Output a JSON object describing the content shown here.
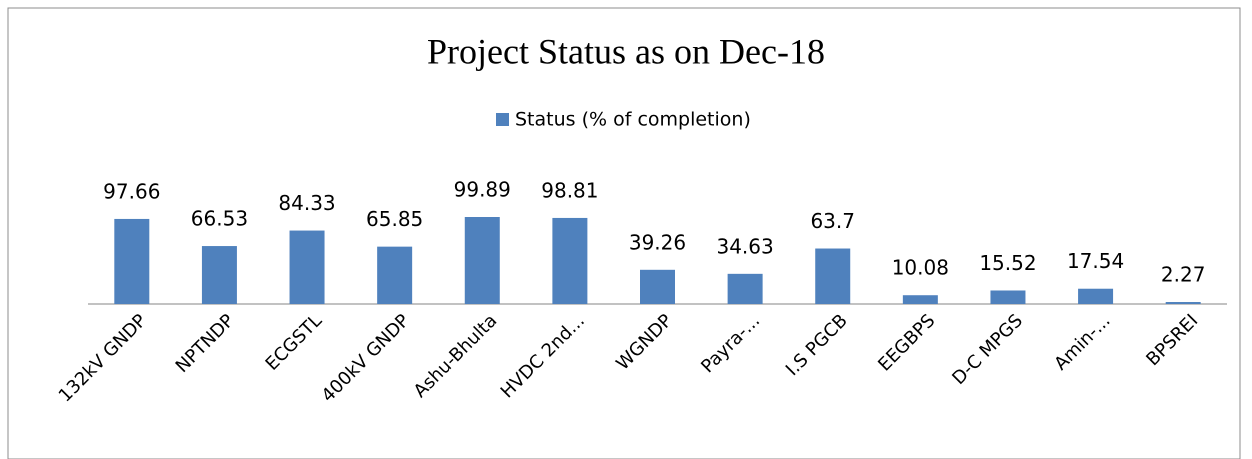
{
  "chart_data": {
    "type": "bar",
    "title": "Project  Status as on  Dec-18",
    "categories": [
      "132kV GNDP",
      "NPTNDP",
      "ECGSTL",
      "400kV GNDP",
      "Ashu-Bhulta",
      "HVDC 2nd...",
      "WGNDP",
      "Payra-...",
      "I.S PGCB",
      "EEGBPS",
      "D-C MPGS",
      "Amin-...",
      "BPSREI"
    ],
    "series": [
      {
        "name": "Status (% of completion)",
        "color": "#4f81bd",
        "values": [
          97.66,
          66.53,
          84.33,
          65.85,
          99.89,
          98.81,
          39.26,
          34.63,
          63.7,
          10.08,
          15.52,
          17.54,
          2.27
        ]
      }
    ],
    "legend": "top"
  }
}
